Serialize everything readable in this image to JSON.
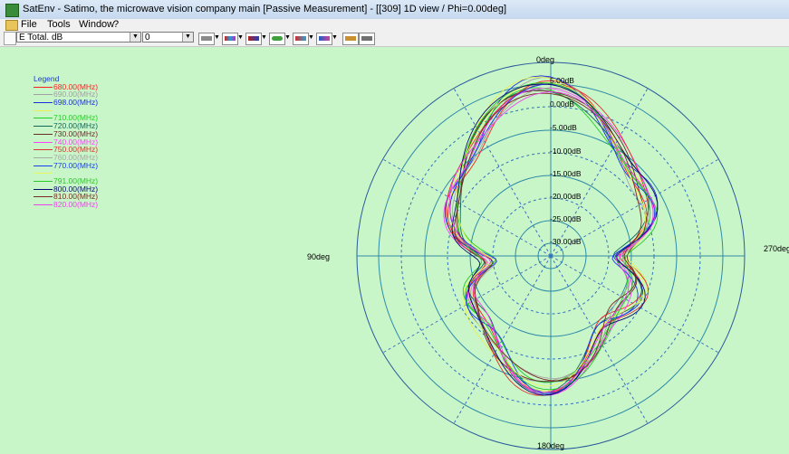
{
  "window": {
    "title": "SatEnv - Satimo, the microwave vision company main [Passive Measurement] - [[309] 1D view / Phi=0.00deg]",
    "app_icon": "satenv-icon"
  },
  "menu": [
    "File",
    "Tools",
    "Window",
    "?"
  ],
  "toolbar": {
    "quantity_value": "E Total. dB",
    "index_value": "0"
  },
  "plot": {
    "background": "#c9f6c9",
    "angle_labels": {
      "top": "0deg",
      "left": "90deg",
      "right": "270deg",
      "bottom": "180deg"
    },
    "radial_labels": [
      "5.00dB",
      "0.00dB",
      "-5.00dB",
      "-10.00dB",
      "-15.00dB",
      "-20.00dB",
      "-25.00dB",
      "-30.00dB"
    ],
    "legend_title": "Legend",
    "legend": [
      {
        "label": "680.00(MHz)",
        "color": "#ff2020"
      },
      {
        "label": "690.00(MHz)",
        "color": "#a0a0a0"
      },
      {
        "label": "698.00(MHz)",
        "color": "#1a2ce0"
      },
      {
        "label": "",
        "color": "#e6f050"
      },
      {
        "label": "710.00(MHz)",
        "color": "#20d020"
      },
      {
        "label": "720.00(MHz)",
        "color": "#106858"
      },
      {
        "label": "730.00(MHz)",
        "color": "#6a2a2a"
      },
      {
        "label": "740.00(MHz)",
        "color": "#ff40ff"
      },
      {
        "label": "750.00(MHz)",
        "color": "#e03030"
      },
      {
        "label": "760.00(MHz)",
        "color": "#a8a8a8"
      },
      {
        "label": "770.00(MHz)",
        "color": "#1a3cf0"
      },
      {
        "label": "",
        "color": "#e8f858"
      },
      {
        "label": "791.00(MHz)",
        "color": "#28c828"
      },
      {
        "label": "800.00(MHz)",
        "color": "#0a0a70"
      },
      {
        "label": "810.00(MHz)",
        "color": "#7a2a20"
      },
      {
        "label": "820.00(MHz)",
        "color": "#f040f0"
      }
    ]
  }
}
